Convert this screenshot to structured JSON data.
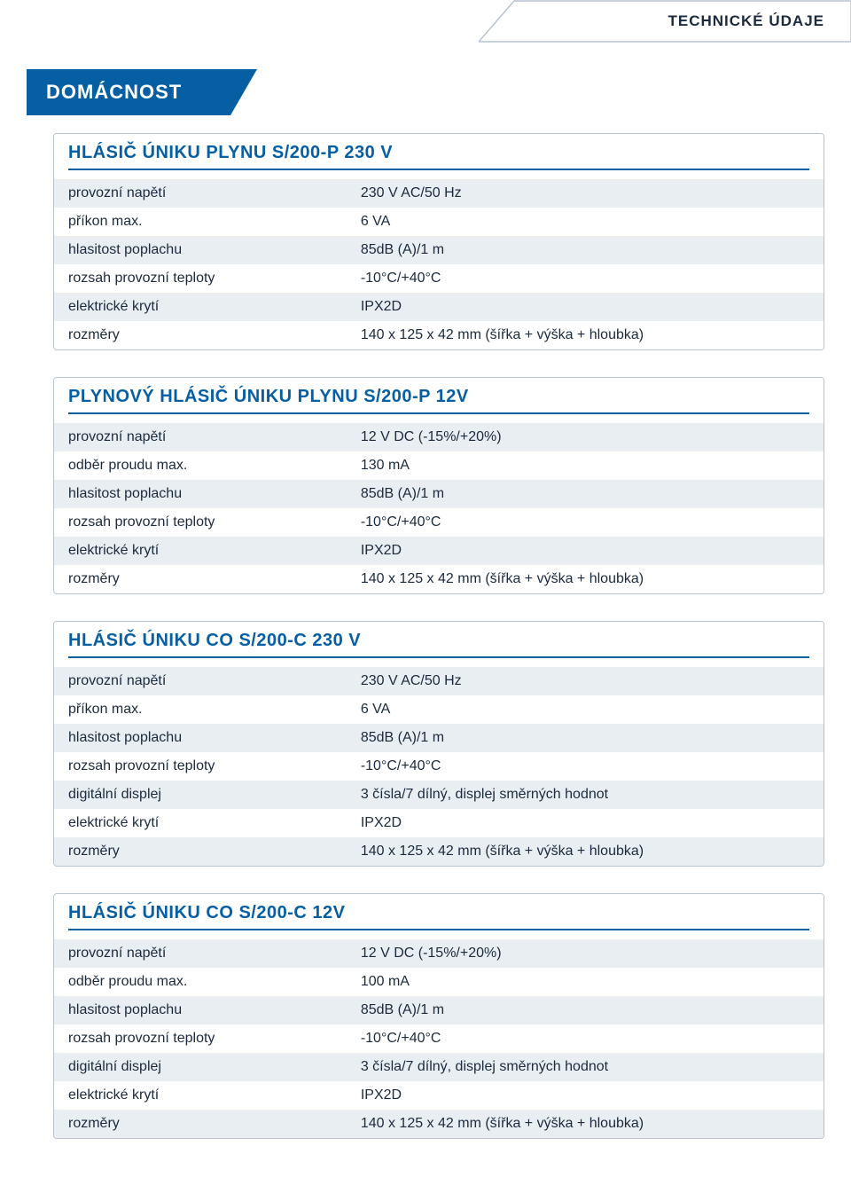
{
  "colors": {
    "brand_blue": "#065ea3",
    "dark_text": "#1b2a3c",
    "panel_border": "#b7c4d0",
    "row_alt": "#e9eef3",
    "bg": "#ffffff",
    "white": "#ffffff",
    "grey_outline": "#b7c4d0"
  },
  "header_tab": {
    "label": "TECHNICKÉ ÚDAJE"
  },
  "category": {
    "label": "DOMÁCNOST"
  },
  "blocks": [
    {
      "title": "HLÁSIČ ÚNIKU PLYNU S/200-P  230 V",
      "rows": [
        {
          "label": "provozní napětí",
          "value": "230 V AC/50 Hz"
        },
        {
          "label": "příkon max.",
          "value": "6 VA"
        },
        {
          "label": "hlasitost poplachu",
          "value": "85dB (A)/1 m"
        },
        {
          "label": "rozsah provozní teploty",
          "value": "-10°C/+40°C"
        },
        {
          "label": "elektrické krytí",
          "value": "IPX2D"
        },
        {
          "label": "rozměry",
          "value": "140 x 125 x 42 mm (šířka + výška + hloubka)"
        }
      ]
    },
    {
      "title": "PLYNOVÝ HLÁSIČ ÚNIKU PLYNU S/200-P  12V",
      "rows": [
        {
          "label": "provozní napětí",
          "value": "12 V DC (-15%/+20%)"
        },
        {
          "label": "odběr proudu max.",
          "value": "130 mA"
        },
        {
          "label": "hlasitost poplachu",
          "value": "85dB (A)/1 m"
        },
        {
          "label": "rozsah provozní teploty",
          "value": "-10°C/+40°C"
        },
        {
          "label": "elektrické krytí",
          "value": "IPX2D"
        },
        {
          "label": "rozměry",
          "value": "140 x 125 x 42 mm (šířka + výška + hloubka)"
        }
      ]
    },
    {
      "title": "HLÁSIČ ÚNIKU CO S/200-C  230 V",
      "rows": [
        {
          "label": "provozní napětí",
          "value": "230 V AC/50 Hz"
        },
        {
          "label": "příkon max.",
          "value": "6 VA"
        },
        {
          "label": "hlasitost poplachu",
          "value": "85dB (A)/1 m"
        },
        {
          "label": "rozsah provozní teploty",
          "value": "-10°C/+40°C"
        },
        {
          "label": "digitální displej",
          "value": "3 čísla/7 dílný, displej směrných hodnot"
        },
        {
          "label": "elektrické krytí",
          "value": "IPX2D"
        },
        {
          "label": "rozměry",
          "value": "140 x 125 x 42 mm (šířka + výška + hloubka)"
        }
      ]
    },
    {
      "title": "HLÁSIČ ÚNIKU CO S/200-C  12V",
      "rows": [
        {
          "label": "provozní napětí",
          "value": "12 V DC (-15%/+20%)"
        },
        {
          "label": "odběr proudu max.",
          "value": "100 mA"
        },
        {
          "label": "hlasitost poplachu",
          "value": "85dB (A)/1 m"
        },
        {
          "label": "rozsah provozní teploty",
          "value": "-10°C/+40°C"
        },
        {
          "label": "digitální displej",
          "value": "3 čísla/7 dílný, displej směrných hodnot"
        },
        {
          "label": "elektrické krytí",
          "value": "IPX2D"
        },
        {
          "label": "rozměry",
          "value": "140 x 125 x 42 mm (šířka + výška + hloubka)"
        }
      ]
    }
  ]
}
